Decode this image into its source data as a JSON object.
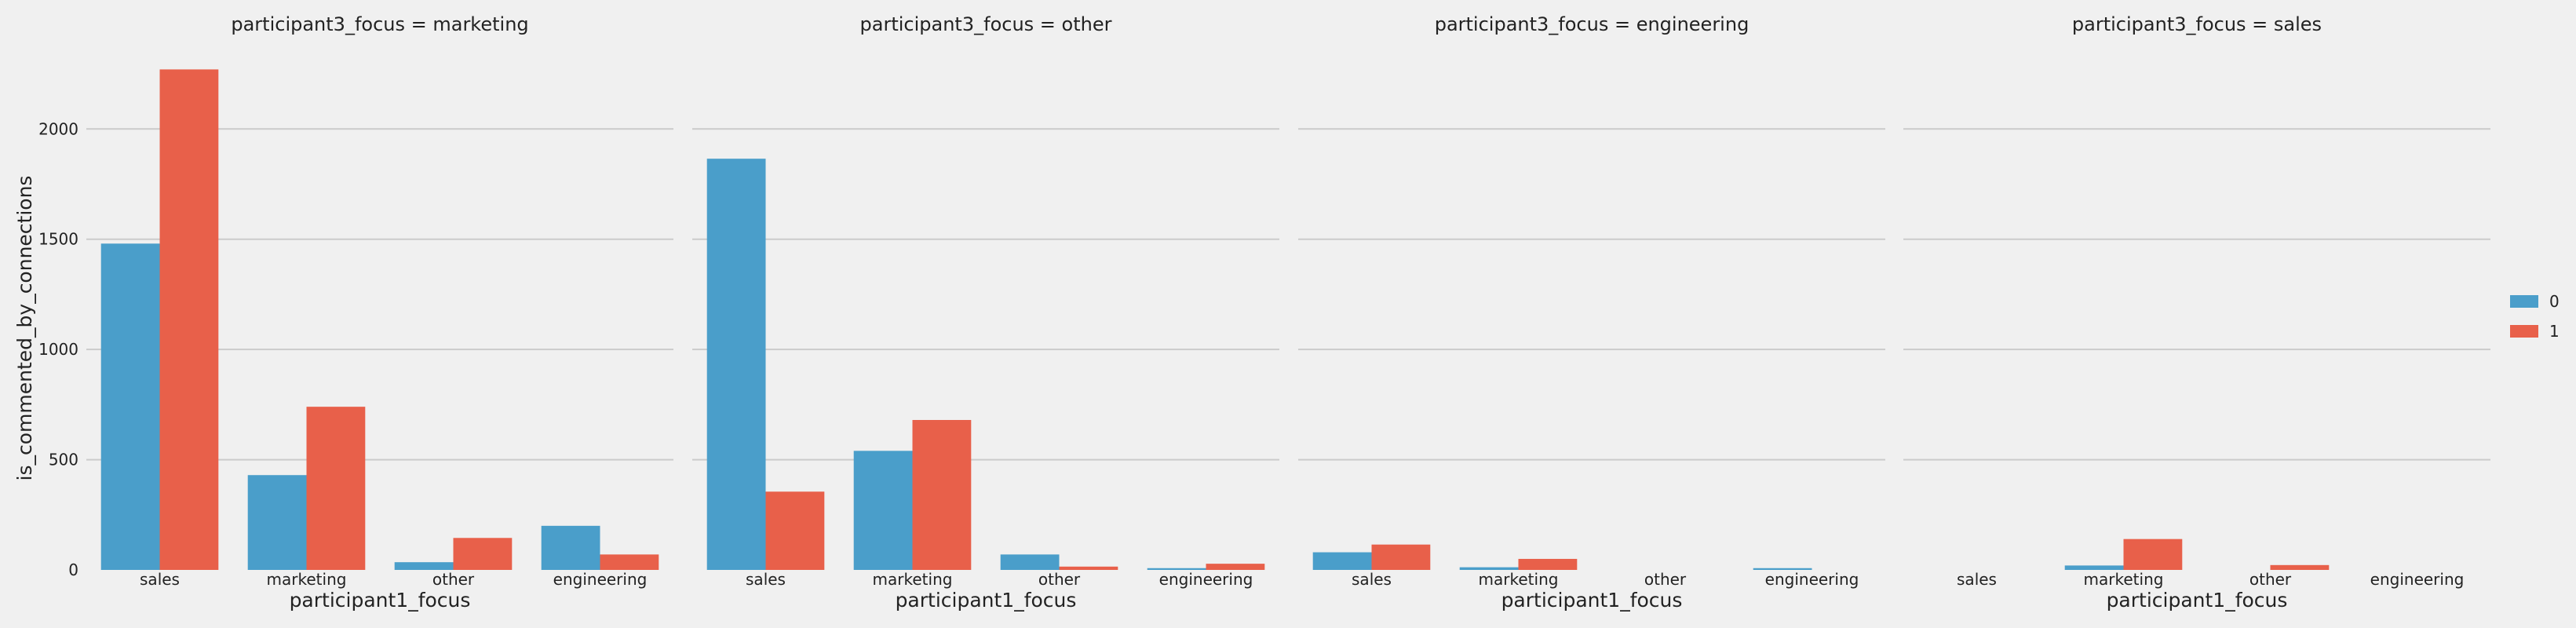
{
  "chart_data": {
    "type": "bar",
    "ylabel": "is_commented_by_connections",
    "xlabel": "participant1_focus",
    "categories": [
      "sales",
      "marketing",
      "other",
      "engineering"
    ],
    "ylim": [
      0,
      2300
    ],
    "yticks": [
      0,
      500,
      1000,
      1500,
      2000
    ],
    "grid": true,
    "legend": {
      "placement": "right",
      "entries": [
        "0",
        "1"
      ]
    },
    "colors": {
      "0": "#4a9eca",
      "1": "#e8604a"
    },
    "facets": [
      {
        "title": "participant3_focus = marketing",
        "series": [
          {
            "name": "0",
            "values": [
              1480,
              430,
              35,
              200
            ]
          },
          {
            "name": "1",
            "values": [
              2270,
              740,
              145,
              70
            ]
          }
        ]
      },
      {
        "title": "participant3_focus = other",
        "series": [
          {
            "name": "0",
            "values": [
              1865,
              540,
              70,
              8
            ]
          },
          {
            "name": "1",
            "values": [
              355,
              680,
              15,
              28
            ]
          }
        ]
      },
      {
        "title": "participant3_focus = engineering",
        "series": [
          {
            "name": "0",
            "values": [
              80,
              12,
              0,
              8
            ]
          },
          {
            "name": "1",
            "values": [
              115,
              50,
              0,
              0
            ]
          }
        ]
      },
      {
        "title": "participant3_focus = sales",
        "series": [
          {
            "name": "0",
            "values": [
              0,
              20,
              0,
              0
            ]
          },
          {
            "name": "1",
            "values": [
              0,
              140,
              22,
              0
            ]
          }
        ]
      }
    ]
  }
}
